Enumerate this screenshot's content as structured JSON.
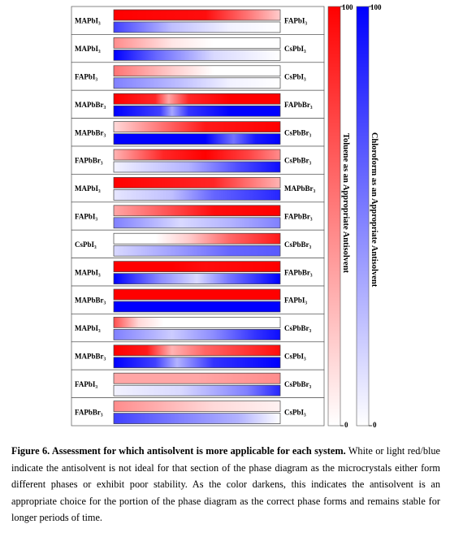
{
  "rows": [
    {
      "left": "MAPbI₃",
      "right": "FAPbI₃",
      "red": [
        [
          0,
          1
        ],
        [
          0.55,
          0.95
        ],
        [
          0.8,
          0.55
        ],
        [
          1,
          0.2
        ]
      ],
      "blue": [
        [
          0,
          0.75
        ],
        [
          0.35,
          0.25
        ],
        [
          0.7,
          0.05
        ],
        [
          1,
          0
        ]
      ]
    },
    {
      "left": "MAPbI₃",
      "right": "CsPbI₃",
      "red": [
        [
          0,
          0.45
        ],
        [
          0.35,
          0.1
        ],
        [
          0.6,
          0
        ],
        [
          1,
          0
        ]
      ],
      "blue": [
        [
          0,
          1
        ],
        [
          0.25,
          0.6
        ],
        [
          0.6,
          0.15
        ],
        [
          1,
          0
        ]
      ]
    },
    {
      "left": "FAPbI₃",
      "right": "CsPbI₃",
      "red": [
        [
          0,
          0.55
        ],
        [
          0.35,
          0.2
        ],
        [
          0.6,
          0
        ],
        [
          1,
          0
        ]
      ],
      "blue": [
        [
          0,
          0.5
        ],
        [
          0.4,
          0.25
        ],
        [
          0.7,
          0.05
        ],
        [
          1,
          0
        ]
      ]
    },
    {
      "left": "MAPbBr₃",
      "right": "FAPbBr₃",
      "red": [
        [
          0,
          1
        ],
        [
          0.25,
          0.85
        ],
        [
          0.33,
          0.35
        ],
        [
          0.45,
          0.85
        ],
        [
          0.7,
          1
        ],
        [
          1,
          1
        ]
      ],
      "blue": [
        [
          0,
          1
        ],
        [
          0.28,
          0.75
        ],
        [
          0.35,
          0.35
        ],
        [
          0.45,
          0.8
        ],
        [
          0.7,
          1
        ],
        [
          1,
          1
        ]
      ]
    },
    {
      "left": "MAPbBr₃",
      "right": "CsPbBr₃",
      "red": [
        [
          0,
          0.15
        ],
        [
          0.25,
          0.5
        ],
        [
          0.55,
          0.9
        ],
        [
          1,
          1
        ]
      ],
      "blue": [
        [
          0,
          1
        ],
        [
          0.55,
          1
        ],
        [
          0.72,
          0.55
        ],
        [
          0.85,
          0.9
        ],
        [
          1,
          1
        ]
      ]
    },
    {
      "left": "FAPbBr₃",
      "right": "CsPbBr₃",
      "red": [
        [
          0,
          0.3
        ],
        [
          0.3,
          0.85
        ],
        [
          0.55,
          1
        ],
        [
          0.8,
          0.75
        ],
        [
          1,
          0.45
        ]
      ],
      "blue": [
        [
          0,
          0.05
        ],
        [
          0.45,
          0.3
        ],
        [
          0.75,
          0.7
        ],
        [
          1,
          0.95
        ]
      ]
    },
    {
      "left": "MAPbI₃",
      "right": "MAPbBr₃",
      "red": [
        [
          0,
          1
        ],
        [
          0.6,
          0.85
        ],
        [
          0.85,
          0.5
        ],
        [
          1,
          0.3
        ]
      ],
      "blue": [
        [
          0,
          0.1
        ],
        [
          0.35,
          0.25
        ],
        [
          0.6,
          0.6
        ],
        [
          1,
          0.85
        ]
      ]
    },
    {
      "left": "FAPbI₃",
      "right": "FAPbBr₃",
      "red": [
        [
          0,
          0.35
        ],
        [
          0.35,
          0.7
        ],
        [
          0.6,
          0.95
        ],
        [
          1,
          1
        ]
      ],
      "blue": [
        [
          0,
          0.5
        ],
        [
          0.4,
          0.15
        ],
        [
          0.7,
          0.3
        ],
        [
          1,
          0.5
        ]
      ]
    },
    {
      "left": "CsPbI₃",
      "right": "CsPbBr₃",
      "red": [
        [
          0,
          0
        ],
        [
          0.25,
          0
        ],
        [
          0.45,
          0.2
        ],
        [
          0.7,
          0.6
        ],
        [
          1,
          0.9
        ]
      ],
      "blue": [
        [
          0,
          0.15
        ],
        [
          0.4,
          0.4
        ],
        [
          0.7,
          0.6
        ],
        [
          1,
          0.65
        ]
      ]
    },
    {
      "left": "MAPbI₃",
      "right": "FAPbBr₃",
      "red": [
        [
          0,
          1
        ],
        [
          0.35,
          1
        ],
        [
          0.55,
          0.95
        ],
        [
          1,
          1
        ]
      ],
      "blue": [
        [
          0,
          1
        ],
        [
          0.28,
          0.45
        ],
        [
          0.5,
          0.15
        ],
        [
          0.7,
          0.55
        ],
        [
          1,
          1
        ]
      ]
    },
    {
      "left": "MAPbBr₃",
      "right": "FAPbI₃",
      "red": [
        [
          0,
          1
        ],
        [
          0.5,
          1
        ],
        [
          1,
          1
        ]
      ],
      "blue": [
        [
          0,
          1
        ],
        [
          0.5,
          1
        ],
        [
          1,
          1
        ]
      ]
    },
    {
      "left": "MAPbI₃",
      "right": "CsPbBr₃",
      "red": [
        [
          0,
          0.7
        ],
        [
          0.15,
          0.15
        ],
        [
          0.3,
          0
        ],
        [
          1,
          0
        ]
      ],
      "blue": [
        [
          0,
          0.5
        ],
        [
          0.35,
          0.2
        ],
        [
          0.6,
          0.45
        ],
        [
          0.85,
          0.8
        ],
        [
          1,
          0.95
        ]
      ]
    },
    {
      "left": "MAPbBr₃",
      "right": "CsPbI₃",
      "red": [
        [
          0,
          1
        ],
        [
          0.2,
          0.9
        ],
        [
          0.35,
          0.3
        ],
        [
          0.55,
          0.6
        ],
        [
          1,
          0.95
        ]
      ],
      "blue": [
        [
          0,
          1
        ],
        [
          0.25,
          0.75
        ],
        [
          0.38,
          0.3
        ],
        [
          0.6,
          0.8
        ],
        [
          1,
          1
        ]
      ]
    },
    {
      "left": "FAPbI₃",
      "right": "CsPbBr₃",
      "red": [
        [
          0,
          0.35
        ],
        [
          0.5,
          0.35
        ],
        [
          1,
          0.45
        ]
      ],
      "blue": [
        [
          0,
          0.05
        ],
        [
          0.4,
          0.15
        ],
        [
          0.8,
          0.5
        ],
        [
          1,
          0.85
        ]
      ]
    },
    {
      "left": "FAPbBr₃",
      "right": "CsPbI₃",
      "red": [
        [
          0,
          0.45
        ],
        [
          0.3,
          0.3
        ],
        [
          0.6,
          0.15
        ],
        [
          1,
          0.05
        ]
      ],
      "blue": [
        [
          0,
          0.75
        ],
        [
          0.4,
          0.5
        ],
        [
          0.75,
          0.3
        ],
        [
          0.92,
          0.1
        ],
        [
          1,
          0
        ]
      ]
    }
  ],
  "colorbars": {
    "red": {
      "color": "#ff0000",
      "max_label": "100",
      "min_label": "0",
      "title": "Toluene as an Appropriate Antisolvent"
    },
    "blue": {
      "color": "#0000ff",
      "max_label": "100",
      "min_label": "0",
      "title": "Chloroform as an Appropriate Antisolvent"
    }
  },
  "caption": {
    "label": "Figure 6",
    "title": "Assessment for which antisolvent is more applicable for each system.",
    "body": "White or light red/blue indicate the antisolvent is not ideal for that section of the phase diagram as the microcrystals either form different phases or exhibit poor stability. As the color darkens, this indicates the antisolvent is an appropriate choice for the portion of the phase diagram as the correct phase forms and remains stable for longer periods of time."
  }
}
